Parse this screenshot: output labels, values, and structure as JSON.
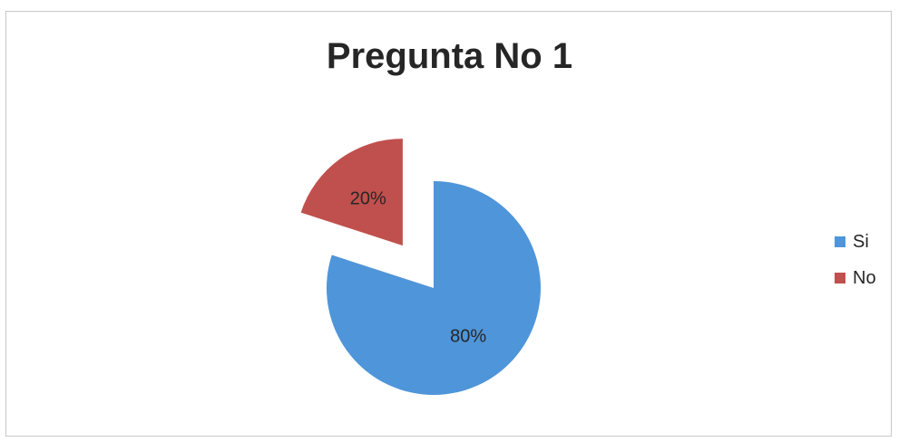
{
  "chart_data": {
    "type": "pie",
    "title": "Pregunta No 1",
    "categories": [
      "Si",
      "No"
    ],
    "values": [
      80,
      20
    ],
    "data_labels": [
      "80%",
      "20%"
    ],
    "colors": [
      "#4f95d9",
      "#c0504d"
    ],
    "exploded": [
      "No"
    ],
    "legend": "right"
  }
}
